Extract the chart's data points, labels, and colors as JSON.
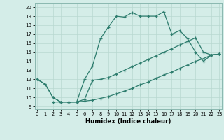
{
  "xlabel": "Humidex (Indice chaleur)",
  "bg_color": "#d4ede8",
  "line_color": "#2e7d6e",
  "grid_color": "#b8d8d0",
  "x_ticks": [
    0,
    1,
    2,
    3,
    4,
    5,
    6,
    7,
    8,
    9,
    10,
    11,
    12,
    13,
    14,
    15,
    16,
    17,
    18,
    19,
    20,
    21,
    22,
    23
  ],
  "y_ticks": [
    9,
    10,
    11,
    12,
    13,
    14,
    15,
    16,
    17,
    18,
    19,
    20
  ],
  "xlim": [
    -0.3,
    23.3
  ],
  "ylim": [
    8.7,
    20.4
  ],
  "line1_x": [
    0,
    1,
    2,
    3,
    4,
    5,
    6,
    7,
    8,
    9,
    10,
    11,
    12,
    13,
    14,
    15,
    16,
    17,
    18,
    19,
    20,
    21,
    22,
    23
  ],
  "line1_y": [
    12.0,
    11.5,
    10.0,
    9.5,
    9.5,
    9.5,
    12.0,
    13.5,
    16.5,
    17.8,
    19.0,
    18.9,
    19.4,
    19.0,
    19.0,
    19.0,
    19.5,
    17.0,
    17.4,
    16.5,
    15.0,
    14.0,
    14.7,
    14.8
  ],
  "line2_x": [
    2,
    3,
    4,
    5,
    6,
    7,
    8,
    9,
    10,
    11,
    12,
    13,
    14,
    15,
    16,
    17,
    18,
    19,
    20,
    21,
    22,
    23
  ],
  "line2_y": [
    9.5,
    9.5,
    9.5,
    9.5,
    9.6,
    9.7,
    9.9,
    10.1,
    10.4,
    10.7,
    11.0,
    11.4,
    11.7,
    12.1,
    12.5,
    12.8,
    13.2,
    13.6,
    14.0,
    14.3,
    14.7,
    14.8
  ],
  "line3_x": [
    0,
    1,
    2,
    3,
    4,
    5,
    6,
    7,
    8,
    9,
    10,
    11,
    12,
    13,
    14,
    15,
    16,
    17,
    18,
    19,
    20,
    21,
    22,
    23
  ],
  "line3_y": [
    12.0,
    11.5,
    10.0,
    9.5,
    9.5,
    9.5,
    9.8,
    11.9,
    12.0,
    12.2,
    12.6,
    13.0,
    13.4,
    13.8,
    14.2,
    14.6,
    15.0,
    15.4,
    15.8,
    16.2,
    16.6,
    15.0,
    14.7,
    14.8
  ]
}
